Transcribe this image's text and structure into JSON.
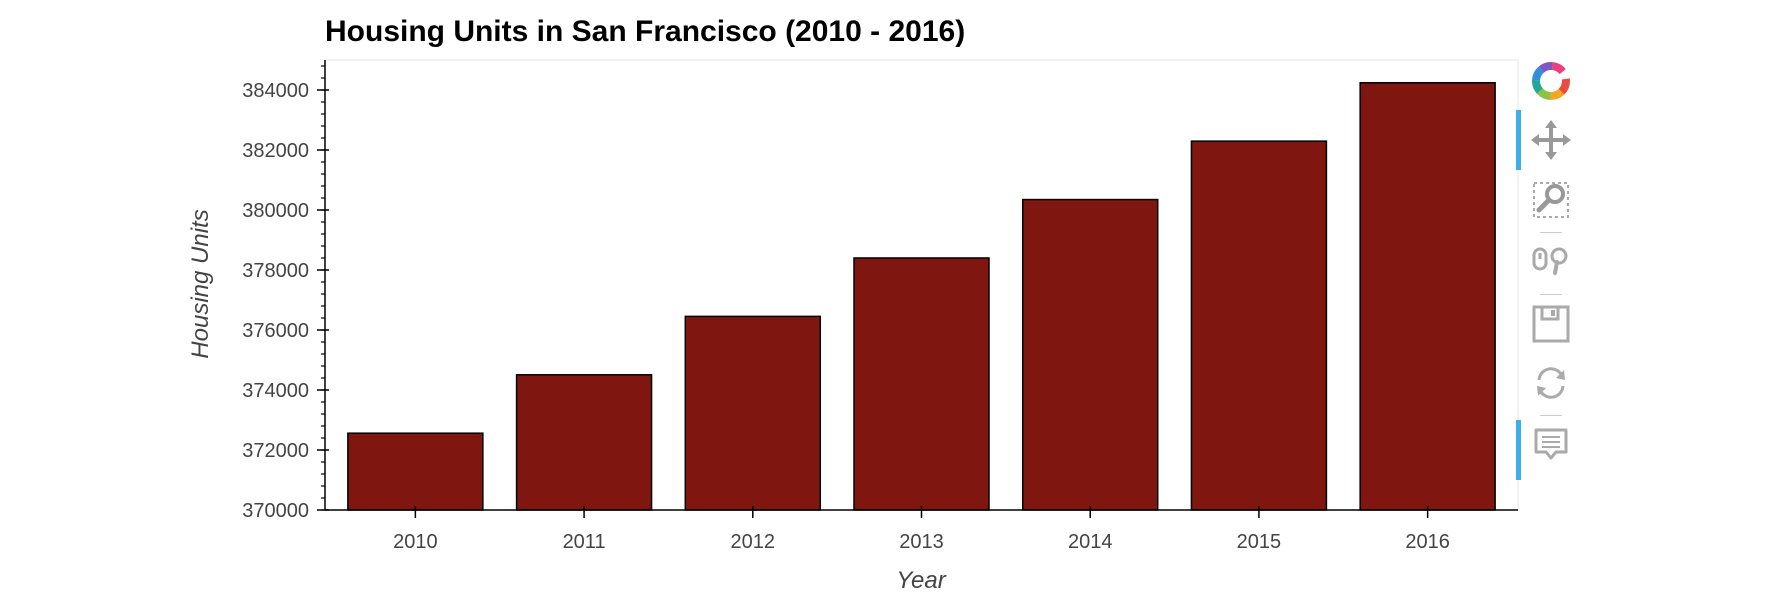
{
  "chart_data": {
    "type": "bar",
    "title": "Housing Units in San Francisco (2010 - 2016)",
    "xlabel": "Year",
    "ylabel": "Housing Units",
    "categories": [
      "2010",
      "2011",
      "2012",
      "2013",
      "2014",
      "2015",
      "2016"
    ],
    "values": [
      372560,
      374507,
      376454,
      378401,
      380348,
      382295,
      384242
    ],
    "ylim": [
      370000,
      385000
    ],
    "yticks": [
      370000,
      372000,
      374000,
      376000,
      378000,
      380000,
      382000,
      384000
    ],
    "ytick_labels": [
      "370000",
      "372000",
      "374000",
      "376000",
      "378000",
      "380000",
      "382000",
      "384000"
    ],
    "bar_color": "#7f1710",
    "bar_outline": "#000000",
    "grid": false,
    "legend": "none"
  },
  "toolbar": {
    "tools": [
      {
        "name": "bokeh-logo",
        "icon": "bokeh-logo-icon",
        "active": false
      },
      {
        "name": "pan",
        "icon": "pan-icon",
        "active": true
      },
      {
        "name": "box-zoom",
        "icon": "box-zoom-icon",
        "active": false
      },
      {
        "name": "wheel-zoom",
        "icon": "wheel-zoom-icon",
        "active": false
      },
      {
        "name": "save",
        "icon": "save-icon",
        "active": false
      },
      {
        "name": "reset",
        "icon": "reset-icon",
        "active": false
      },
      {
        "name": "hover",
        "icon": "hover-icon",
        "active": true
      }
    ]
  }
}
